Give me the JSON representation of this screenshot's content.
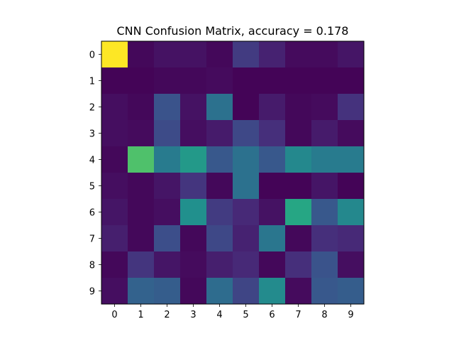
{
  "chart_data": {
    "type": "heatmap",
    "title": "CNN Confusion Matrix, accuracy = 0.178",
    "xlabel": "",
    "ylabel": "",
    "x_categories": [
      "0",
      "1",
      "2",
      "3",
      "4",
      "5",
      "6",
      "7",
      "8",
      "9"
    ],
    "y_categories": [
      "0",
      "1",
      "2",
      "3",
      "4",
      "5",
      "6",
      "7",
      "8",
      "9"
    ],
    "colormap": "viridis",
    "value_range": [
      0,
      1
    ],
    "values": [
      [
        1.0,
        0.02,
        0.05,
        0.05,
        0.02,
        0.18,
        0.1,
        0.03,
        0.03,
        0.06
      ],
      [
        0.01,
        0.01,
        0.02,
        0.02,
        0.03,
        0.01,
        0.01,
        0.01,
        0.01,
        0.01
      ],
      [
        0.04,
        0.02,
        0.26,
        0.05,
        0.38,
        0.01,
        0.08,
        0.02,
        0.03,
        0.15
      ],
      [
        0.04,
        0.03,
        0.23,
        0.04,
        0.08,
        0.22,
        0.14,
        0.02,
        0.08,
        0.03
      ],
      [
        0.02,
        0.72,
        0.42,
        0.54,
        0.28,
        0.38,
        0.28,
        0.47,
        0.42,
        0.42
      ],
      [
        0.04,
        0.02,
        0.06,
        0.16,
        0.02,
        0.38,
        0.01,
        0.01,
        0.06,
        0.01
      ],
      [
        0.06,
        0.02,
        0.04,
        0.5,
        0.18,
        0.12,
        0.05,
        0.6,
        0.28,
        0.47
      ],
      [
        0.09,
        0.02,
        0.24,
        0.02,
        0.22,
        0.1,
        0.4,
        0.02,
        0.14,
        0.12
      ],
      [
        0.02,
        0.16,
        0.06,
        0.03,
        0.09,
        0.12,
        0.02,
        0.14,
        0.26,
        0.04
      ],
      [
        0.04,
        0.32,
        0.3,
        0.02,
        0.36,
        0.21,
        0.48,
        0.03,
        0.28,
        0.3
      ]
    ]
  }
}
